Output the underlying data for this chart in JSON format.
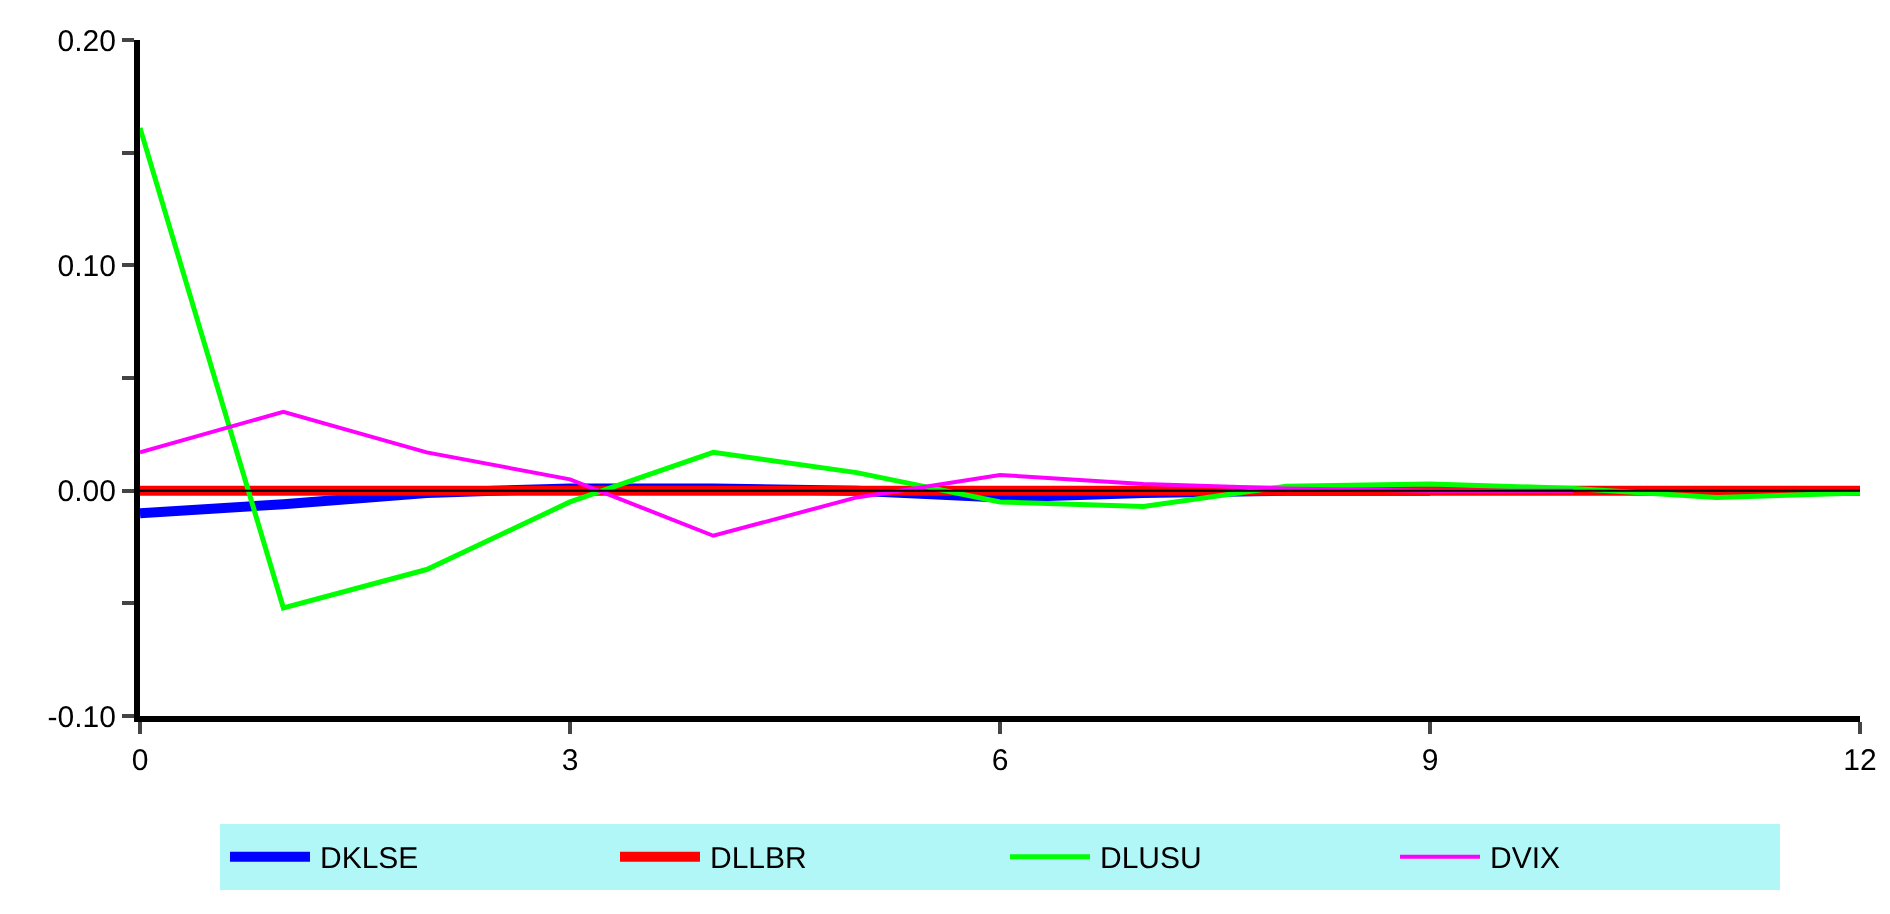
{
  "chart_data": {
    "type": "line",
    "x": [
      0,
      1,
      2,
      3,
      4,
      5,
      6,
      7,
      8,
      9,
      10,
      11,
      12
    ],
    "series": [
      {
        "name": "DKLSE",
        "color": "#0000ff",
        "values": [
          -0.01,
          -0.006,
          -0.001,
          0.001,
          0.001,
          0,
          -0.003,
          -0.001,
          0,
          0,
          null,
          null,
          null
        ]
      },
      {
        "name": "DLLBR",
        "color": "#ff0000",
        "values": [
          0,
          0,
          0,
          0,
          0,
          0,
          0,
          0,
          0,
          0,
          0,
          0,
          0
        ]
      },
      {
        "name": "DLUSU",
        "color": "#00ff00",
        "values": [
          0.161,
          -0.052,
          -0.035,
          -0.005,
          0.017,
          0.008,
          -0.005,
          -0.007,
          0.002,
          0.003,
          0.001,
          -0.003,
          -0.001
        ]
      },
      {
        "name": "DVIX",
        "color": "#ff00ff",
        "values": [
          0.017,
          0.035,
          0.017,
          0.005,
          -0.02,
          -0.003,
          0.007,
          0.003,
          0.001,
          0,
          0,
          null,
          null
        ]
      }
    ],
    "xlim": [
      0,
      12
    ],
    "xticks": [
      0,
      3,
      6,
      9,
      12
    ],
    "ylim": [
      -0.1,
      0.2
    ],
    "yticks": [
      {
        "value": -0.1,
        "label": "-0.10"
      },
      {
        "value": -0.05,
        "label": null
      },
      {
        "value": 0,
        "label": "0.00"
      },
      {
        "value": 0.05,
        "label": null
      },
      {
        "value": 0.1,
        "label": "0.10"
      },
      {
        "value": 0.15,
        "label": null
      },
      {
        "value": 0.2,
        "label": "0.20"
      }
    ],
    "ref_lines": [
      {
        "axis": "y",
        "value": 0,
        "color": "#000000"
      }
    ],
    "grid": false,
    "legend": "bottom",
    "marker": "none",
    "line_style": "solid"
  }
}
